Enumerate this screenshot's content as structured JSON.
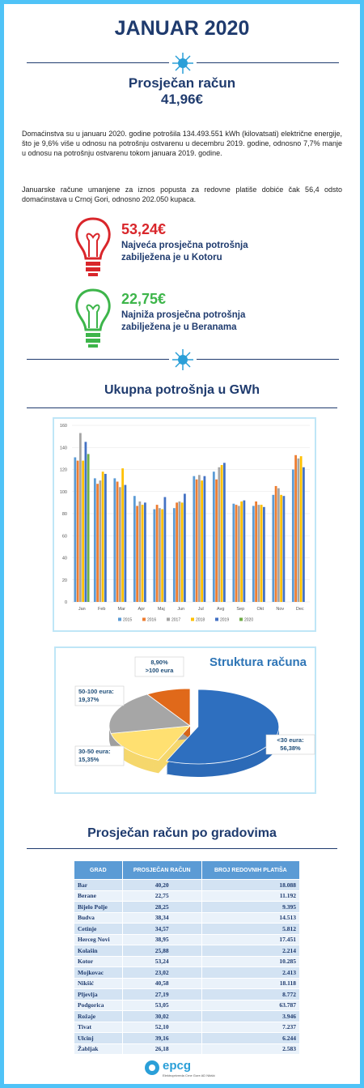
{
  "header": {
    "title": "JANUAR 2020",
    "subtitle": "Prosječan račun",
    "average": "41,96€"
  },
  "intro": {
    "paragraphs": [
      "Domaćinstva su u januaru 2020. godine potrošila 134.493.551 kWh (kilovatsati) električne energije, što je 9,6% više u odnosu na potrošnju ostvarenu u decembru 2019. godine, odnosno 7,7% manje u odnosu na potrošnju ostvarenu tokom januara 2019. godine.",
      "Januarske račune umanjene za iznos popusta za redovne platiše dobiće čak 56,4 odsto domaćinstava u Crnoj Gori, odnosno 202.050 kupaca."
    ]
  },
  "highlights": [
    {
      "value": "53,24€",
      "text": "Najveća prosječna potrošnja zabilježena je u Kotoru"
    },
    {
      "value": "22,75€",
      "text": "Najniža prosječna potrošnja zabilježena je u Beranama"
    }
  ],
  "sections": {
    "consumption": "Ukupna potrošnja u GWh",
    "cities": "Prosječan račun po gradovima"
  },
  "chart_data": [
    {
      "type": "bar",
      "categories": [
        "Jan",
        "Feb",
        "Mar",
        "Apr",
        "Maj",
        "Jun",
        "Jul",
        "Avg",
        "Sep",
        "Okt",
        "Nov",
        "Dec"
      ],
      "series": [
        {
          "name": "2015",
          "color": "#5b9bd5",
          "values": [
            131,
            112,
            112,
            96,
            84,
            85,
            114,
            118,
            89,
            87,
            97,
            120
          ]
        },
        {
          "name": "2016",
          "color": "#ed7d31",
          "values": [
            128,
            107,
            109,
            87,
            88,
            90,
            111,
            111,
            88,
            91,
            105,
            133
          ]
        },
        {
          "name": "2017",
          "color": "#a5a5a5",
          "values": [
            153,
            110,
            104,
            91,
            85,
            91,
            115,
            122,
            87,
            88,
            103,
            130
          ]
        },
        {
          "name": "2018",
          "color": "#ffc000",
          "values": [
            128,
            118,
            121,
            88,
            84,
            90,
            110,
            124,
            91,
            88,
            97,
            132
          ]
        },
        {
          "name": "2019",
          "color": "#4472c4",
          "values": [
            145,
            116,
            106,
            90,
            95,
            98,
            114,
            126,
            92,
            86,
            96,
            122
          ]
        },
        {
          "name": "2020",
          "color": "#70ad47",
          "values": [
            134,
            null,
            null,
            null,
            null,
            null,
            null,
            null,
            null,
            null,
            null,
            null
          ]
        }
      ],
      "ylim": [
        0,
        160
      ],
      "yticks": [
        0,
        20,
        40,
        60,
        80,
        100,
        120,
        140,
        160
      ],
      "grid": true,
      "legend": "bottom"
    },
    {
      "type": "pie",
      "title": "Struktura računa",
      "categories": [
        "<30 eura:",
        "30-50 eura:",
        "50-100 eura:",
        ">100 eura"
      ],
      "values": [
        56.38,
        15.35,
        19.37,
        8.9
      ],
      "value_labels": [
        "56,38%",
        "15,35%",
        "19,37%",
        "8,90%"
      ],
      "colors": [
        "#2e6fbf",
        "#ffe071",
        "#a6a6a6",
        "#e0691a"
      ]
    }
  ],
  "table": {
    "columns": [
      "GRAD",
      "PROSJEČAN RAČUN",
      "BROJ REDOVNIH PLATIŠA"
    ],
    "rows": [
      [
        "Bar",
        "40,20",
        "18.088"
      ],
      [
        "Berane",
        "22,75",
        "11.192"
      ],
      [
        "Bijelo Polje",
        "28,25",
        "9.395"
      ],
      [
        "Budva",
        "38,34",
        "14.513"
      ],
      [
        "Cetinje",
        "34,57",
        "5.812"
      ],
      [
        "Herceg Novi",
        "38,95",
        "17.451"
      ],
      [
        "Kolašin",
        "25,88",
        "2.214"
      ],
      [
        "Kotor",
        "53,24",
        "10.285"
      ],
      [
        "Mojkovac",
        "23,02",
        "2.413"
      ],
      [
        "Nikšić",
        "40,58",
        "18.118"
      ],
      [
        "Pljevlja",
        "27,19",
        "8.772"
      ],
      [
        "Podgorica",
        "53,05",
        "63.787"
      ],
      [
        "Rožaje",
        "30,02",
        "3.946"
      ],
      [
        "Tivat",
        "52,10",
        "7.237"
      ],
      [
        "Ulcinj",
        "39,16",
        "6.244"
      ],
      [
        "Žabljak",
        "26,18",
        "2.583"
      ]
    ]
  },
  "footer": {
    "logo": "epcg",
    "org": "Elektroprivreda Crne Gore AD Nikšić"
  }
}
